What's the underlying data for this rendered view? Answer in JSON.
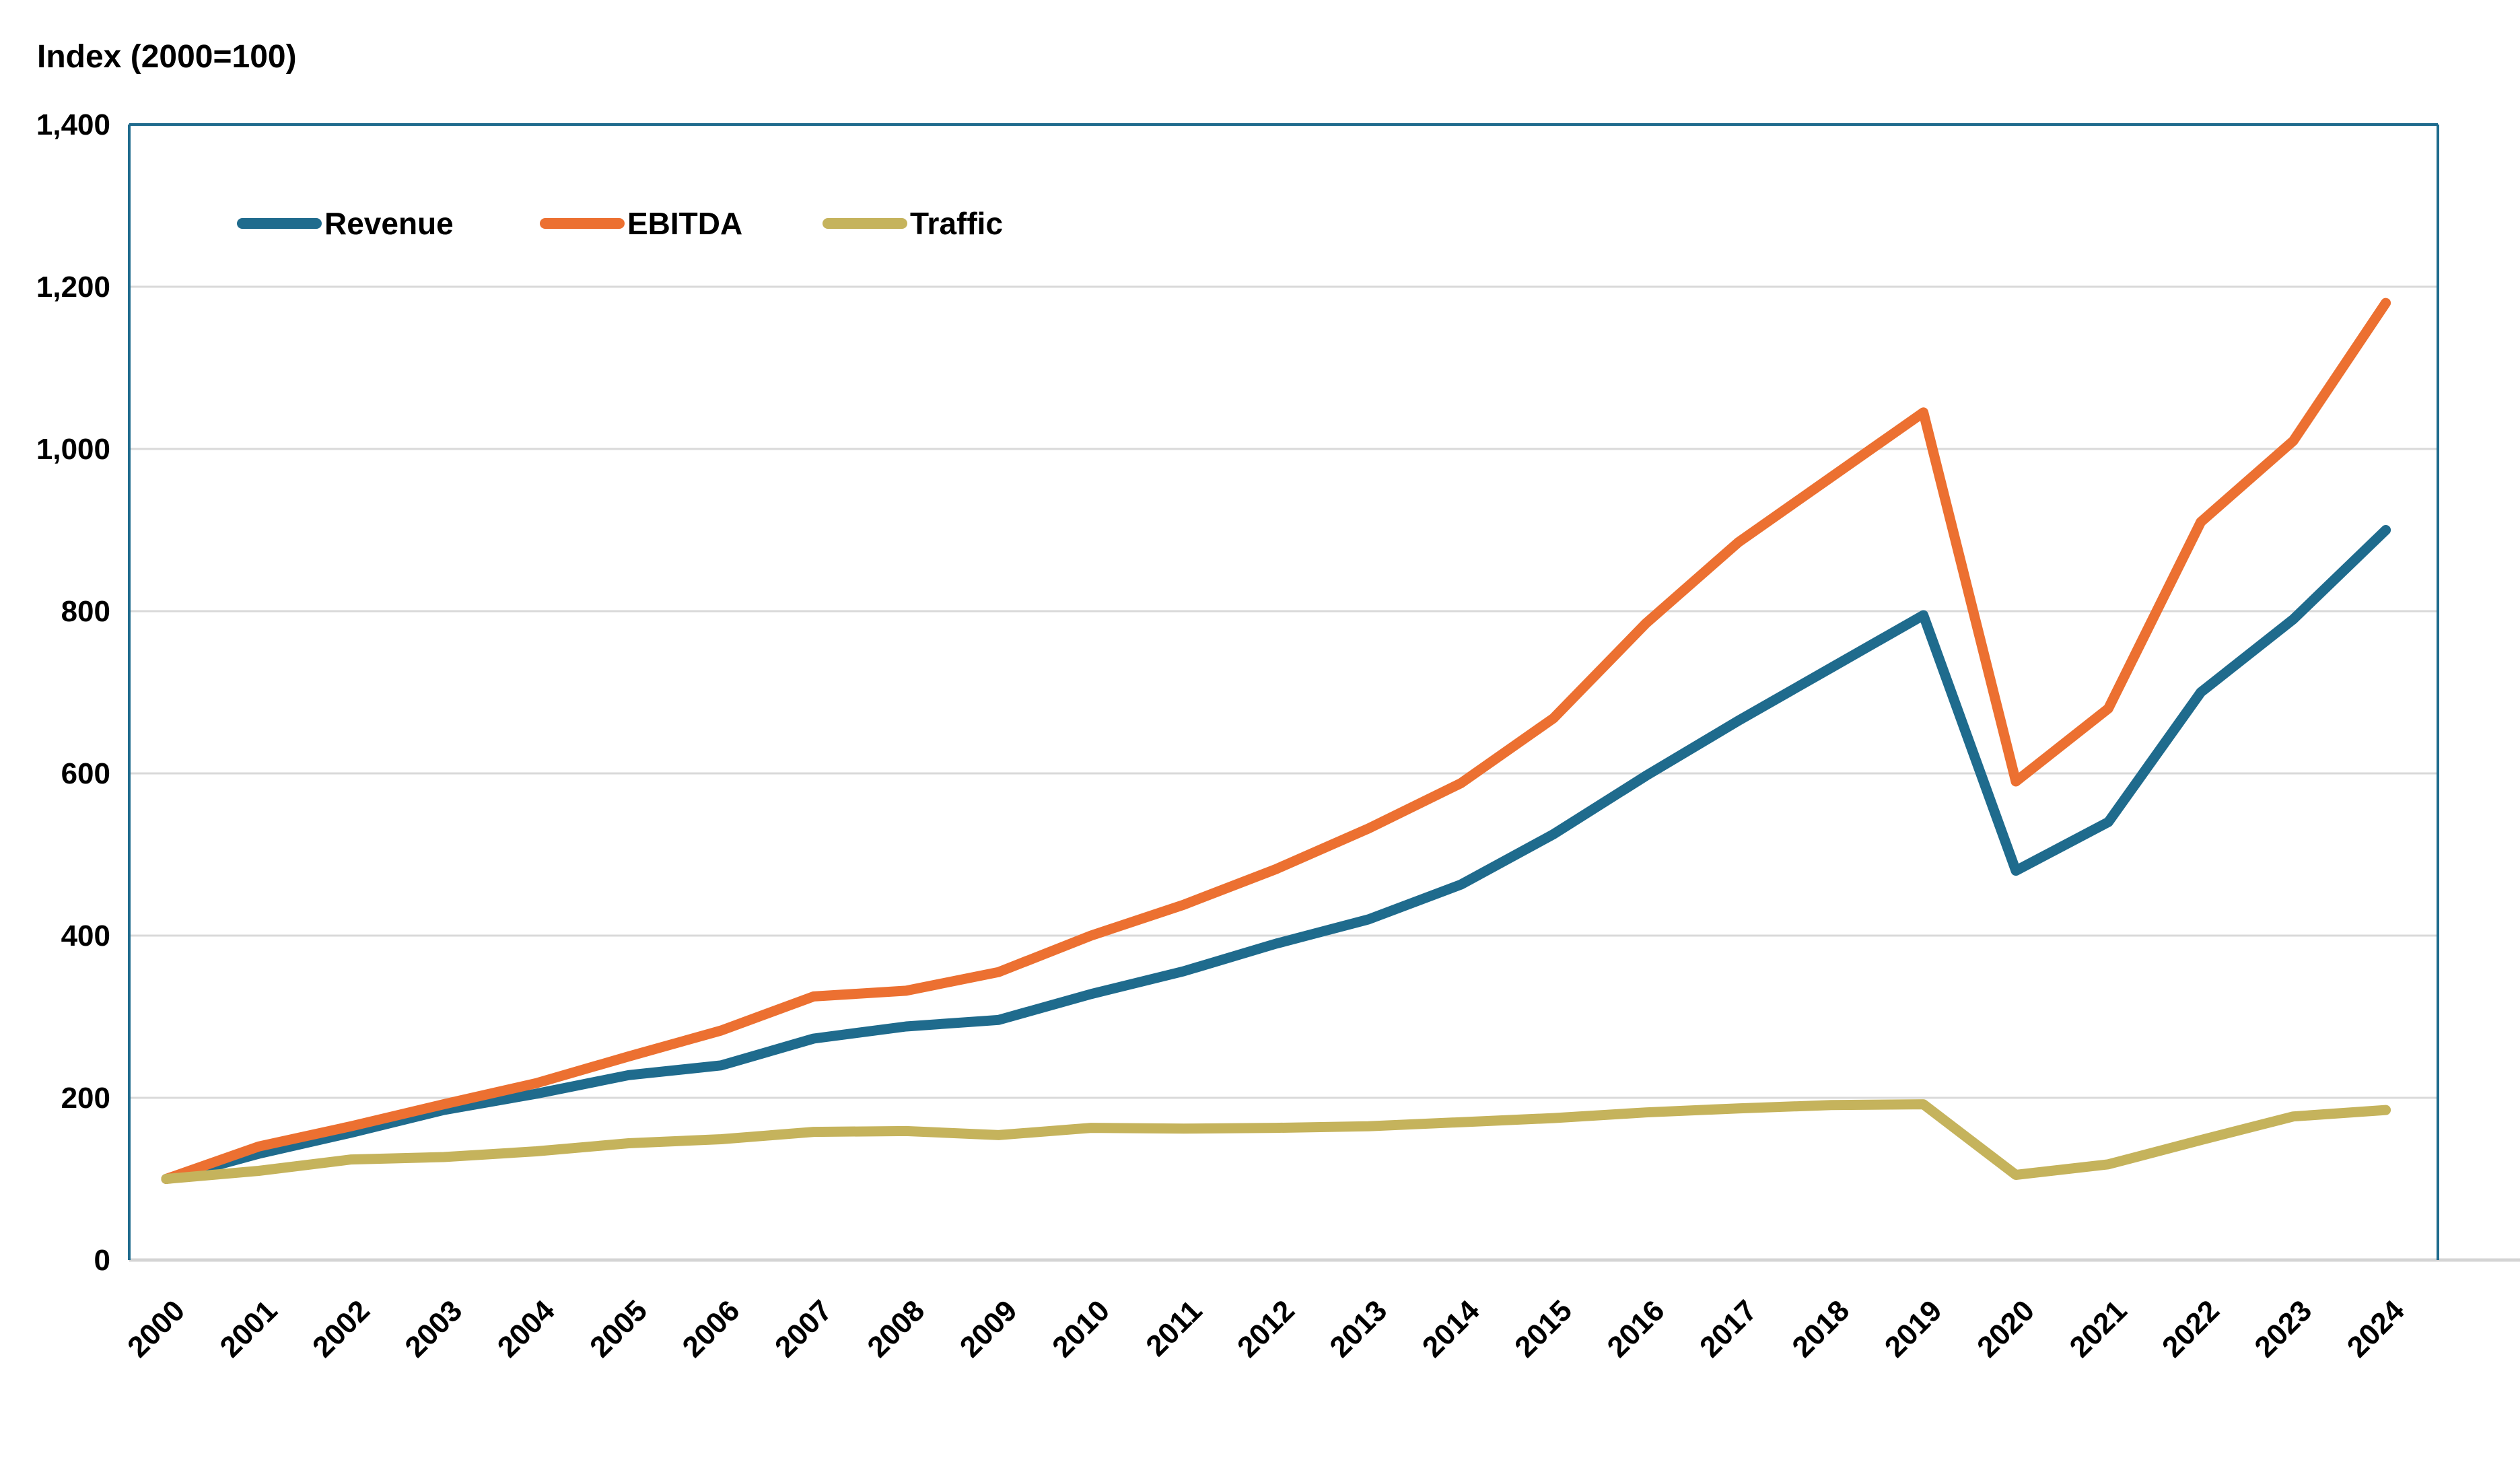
{
  "chart_data": {
    "type": "line",
    "title": "Index (2000=100)",
    "x": [
      "2000",
      "2001",
      "2002",
      "2003",
      "2004",
      "2005",
      "2006",
      "2007",
      "2008",
      "2009",
      "2010",
      "2011",
      "2012",
      "2013",
      "2014",
      "2015",
      "2016",
      "2017",
      "2018",
      "2019",
      "2020",
      "2021",
      "2022",
      "2023",
      "2024"
    ],
    "series": [
      {
        "name": "Revenue",
        "color": "#1F6B8D",
        "values": [
          100,
          131,
          157,
          185,
          205,
          228,
          240,
          273,
          288,
          296,
          328,
          356,
          390,
          420,
          463,
          525,
          597,
          665,
          730,
          795,
          480,
          540,
          700,
          790,
          900
        ]
      },
      {
        "name": "EBITDA",
        "color": "#EC7031",
        "values": [
          100,
          140,
          165,
          192,
          218,
          251,
          283,
          325,
          332,
          355,
          400,
          438,
          482,
          532,
          588,
          668,
          785,
          885,
          965,
          1045,
          590,
          680,
          910,
          1010,
          1180
        ]
      },
      {
        "name": "Traffic",
        "color": "#C5B35C",
        "values": [
          100,
          110,
          124,
          127,
          134,
          144,
          149,
          158,
          159,
          154,
          163,
          162,
          163,
          165,
          170,
          175,
          182,
          187,
          191,
          192,
          105,
          118,
          148,
          177,
          185
        ]
      }
    ],
    "xlabel": "",
    "ylabel": "",
    "ylim": [
      0,
      1400
    ],
    "yticks": [
      {
        "value": 0,
        "label": "0"
      },
      {
        "value": 200,
        "label": "200"
      },
      {
        "value": 400,
        "label": "400"
      },
      {
        "value": 600,
        "label": "600"
      },
      {
        "value": 800,
        "label": "800"
      },
      {
        "value": 1000,
        "label": "1,000"
      },
      {
        "value": 1200,
        "label": "1,200"
      },
      {
        "value": 1400,
        "label": "1,400"
      }
    ],
    "grid": true,
    "legend_position": "top-left-inside",
    "colors": {
      "plot_border": "#1F6B8D",
      "gridline": "#D9D9D9",
      "axis_line": "#D4D4D4",
      "text": "#000000",
      "background": "#FFFFFF"
    }
  }
}
